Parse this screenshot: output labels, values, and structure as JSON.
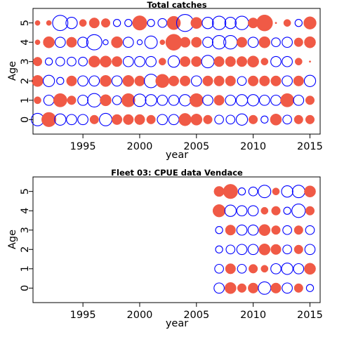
{
  "colors": {
    "positive": "#f05a46",
    "negative": "#0000ff",
    "frame": "#000000",
    "background": "#ffffff"
  },
  "chart_data": [
    {
      "type": "scatter",
      "subtype": "bubble-residuals",
      "title": "Total catches",
      "xlabel": "year",
      "ylabel": "Age",
      "xlim": [
        1990.6,
        2015.9
      ],
      "ylim": [
        -0.75,
        5.75
      ],
      "xticks": [
        1995,
        2000,
        2005,
        2010,
        2015
      ],
      "yticks": [
        0,
        1,
        2,
        3,
        4,
        5
      ],
      "x": [
        1991,
        1992,
        1993,
        1994,
        1995,
        1996,
        1997,
        1998,
        1999,
        2000,
        2001,
        2002,
        2003,
        2004,
        2005,
        2006,
        2007,
        2008,
        2009,
        2010,
        2011,
        2012,
        2013,
        2014,
        2015
      ],
      "grid": false,
      "legend": "none",
      "series": [
        {
          "age": 5,
          "values": [
            0.1,
            0.1,
            0.9,
            0.5,
            0.2,
            0.4,
            0.3,
            0.2,
            0.2,
            0.8,
            0.2,
            0.3,
            0.7,
            1.1,
            0.5,
            0.5,
            0.7,
            0.5,
            0.7,
            0.4,
            1.0,
            0.0,
            0.2,
            0.2,
            0.6
          ]
        },
        {
          "age": 4,
          "values": [
            0.1,
            0.5,
            0.4,
            0.4,
            0.4,
            0.9,
            0.1,
            0.5,
            0.4,
            0.1,
            0.6,
            0.1,
            1.0,
            0.4,
            0.4,
            0.4,
            0.7,
            0.7,
            0.4,
            0.4,
            0.5,
            0.3,
            0.4,
            0.3,
            0.5
          ]
        },
        {
          "age": 3,
          "values": [
            0.3,
            0.2,
            0.3,
            0.3,
            0.3,
            0.5,
            0.5,
            0.4,
            0.4,
            0.4,
            0.4,
            0.2,
            0.5,
            0.4,
            0.4,
            0.6,
            0.4,
            0.4,
            0.4,
            0.5,
            0.2,
            0.4,
            0.4,
            0.2,
            0.0
          ]
        },
        {
          "age": 2,
          "values": [
            0.5,
            0.5,
            0.2,
            0.4,
            0.4,
            0.4,
            0.5,
            0.4,
            0.5,
            0.4,
            0.7,
            0.7,
            0.4,
            0.4,
            0.4,
            0.4,
            0.4,
            0.4,
            0.3,
            0.4,
            0.4,
            0.4,
            0.4,
            0.4,
            0.5
          ]
        },
        {
          "age": 1,
          "values": [
            0.2,
            0.4,
            0.7,
            0.3,
            0.4,
            0.7,
            0.5,
            0.3,
            0.7,
            0.6,
            0.5,
            0.4,
            0.4,
            0.5,
            0.7,
            0.4,
            0.4,
            0.4,
            0.5,
            0.5,
            0.4,
            0.4,
            0.7,
            0.4,
            0.3
          ]
        },
        {
          "age": 0,
          "values": [
            0.6,
            0.8,
            0.5,
            0.4,
            0.4,
            0.3,
            0.6,
            0.4,
            0.4,
            0.4,
            0.3,
            0.4,
            0.4,
            0.6,
            0.5,
            0.3,
            0.3,
            0.3,
            0.5,
            0.3,
            0.2,
            0.5,
            0.3,
            0.3,
            0.3
          ]
        }
      ],
      "signs": [
        {
          "age": 5,
          "values": [
            1,
            1,
            -1,
            -1,
            1,
            1,
            1,
            -1,
            -1,
            1,
            -1,
            -1,
            1,
            -1,
            1,
            -1,
            -1,
            -1,
            -1,
            1,
            1,
            1,
            1,
            -1,
            1
          ]
        },
        {
          "age": 4,
          "values": [
            1,
            1,
            -1,
            1,
            -1,
            -1,
            -1,
            1,
            -1,
            -1,
            -1,
            1,
            1,
            1,
            1,
            -1,
            -1,
            -1,
            1,
            -1,
            1,
            -1,
            -1,
            1,
            1
          ]
        },
        {
          "age": 3,
          "values": [
            1,
            -1,
            -1,
            -1,
            -1,
            1,
            1,
            1,
            -1,
            -1,
            -1,
            1,
            -1,
            1,
            1,
            -1,
            1,
            1,
            1,
            1,
            1,
            -1,
            -1,
            1,
            1
          ]
        },
        {
          "age": 2,
          "values": [
            1,
            -1,
            -1,
            1,
            -1,
            -1,
            1,
            -1,
            1,
            1,
            -1,
            1,
            1,
            1,
            -1,
            1,
            1,
            1,
            -1,
            1,
            1,
            1,
            -1,
            1,
            -1
          ]
        },
        {
          "age": 1,
          "values": [
            1,
            -1,
            1,
            1,
            -1,
            -1,
            1,
            -1,
            1,
            -1,
            -1,
            -1,
            -1,
            -1,
            1,
            -1,
            1,
            -1,
            -1,
            -1,
            -1,
            -1,
            1,
            -1,
            1
          ]
        },
        {
          "age": 0,
          "values": [
            -1,
            1,
            -1,
            -1,
            -1,
            1,
            -1,
            1,
            1,
            1,
            1,
            -1,
            -1,
            1,
            1,
            1,
            -1,
            -1,
            -1,
            1,
            -1,
            1,
            -1,
            1,
            1
          ]
        }
      ]
    },
    {
      "type": "scatter",
      "subtype": "bubble-residuals",
      "title": "Fleet 03:  CPUE data Vendace",
      "xlabel": "year",
      "ylabel": "Age",
      "xlim": [
        1990.6,
        2015.9
      ],
      "ylim": [
        -0.75,
        5.75
      ],
      "xticks": [
        1995,
        2000,
        2005,
        2010,
        2015
      ],
      "yticks": [
        0,
        1,
        2,
        3,
        4,
        5
      ],
      "x": [
        2007,
        2008,
        2009,
        2010,
        2011,
        2012,
        2013,
        2014,
        2015
      ],
      "grid": false,
      "legend": "none",
      "series": [
        {
          "age": 5,
          "values": [
            0.4,
            0.8,
            0.2,
            0.3,
            0.6,
            0.2,
            0.5,
            0.6,
            0.5
          ]
        },
        {
          "age": 4,
          "values": [
            0.6,
            0.5,
            0.4,
            0.4,
            0.2,
            0.3,
            0.2,
            0.7,
            0.3
          ]
        },
        {
          "age": 3,
          "values": [
            0.2,
            0.4,
            0.4,
            0.4,
            0.5,
            0.3,
            0.3,
            0.3,
            0.3
          ]
        },
        {
          "age": 2,
          "values": [
            0.2,
            0.3,
            0.4,
            0.4,
            0.5,
            0.4,
            0.3,
            0.3,
            0.4
          ]
        },
        {
          "age": 1,
          "values": [
            0.3,
            0.4,
            0.3,
            0.3,
            0.2,
            0.4,
            0.5,
            0.4,
            0.5
          ]
        },
        {
          "age": 0,
          "values": [
            0.4,
            0.5,
            0.3,
            0.4,
            0.6,
            0.4,
            0.4,
            0.3,
            0.2
          ]
        }
      ],
      "signs": [
        {
          "age": 5,
          "values": [
            1,
            1,
            -1,
            -1,
            -1,
            1,
            -1,
            -1,
            1
          ]
        },
        {
          "age": 4,
          "values": [
            1,
            -1,
            -1,
            -1,
            1,
            1,
            -1,
            -1,
            1
          ]
        },
        {
          "age": 3,
          "values": [
            -1,
            1,
            -1,
            -1,
            1,
            1,
            -1,
            1,
            -1
          ]
        },
        {
          "age": 2,
          "values": [
            -1,
            -1,
            -1,
            -1,
            1,
            1,
            -1,
            1,
            -1
          ]
        },
        {
          "age": 1,
          "values": [
            -1,
            1,
            -1,
            1,
            1,
            -1,
            -1,
            -1,
            1
          ]
        },
        {
          "age": 0,
          "values": [
            -1,
            1,
            1,
            1,
            -1,
            1,
            -1,
            1,
            -1
          ]
        }
      ]
    }
  ]
}
